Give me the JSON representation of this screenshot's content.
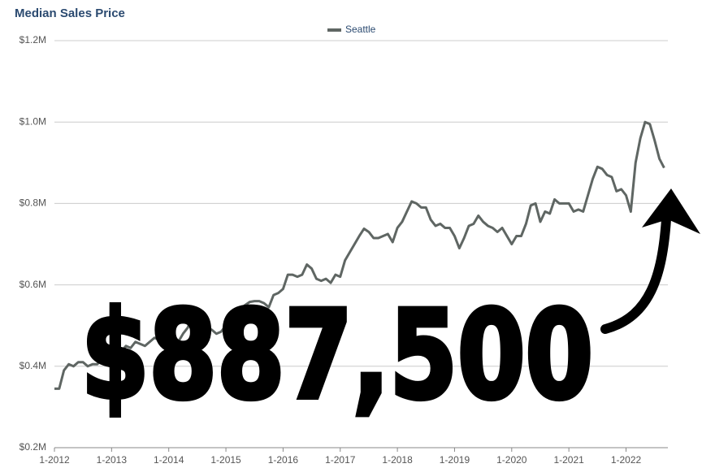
{
  "chart_data": {
    "type": "line",
    "title": "Median Sales Price",
    "annotation": "$887,500",
    "categories": [
      "1-2012",
      null,
      null,
      null,
      null,
      null,
      null,
      null,
      null,
      null,
      null,
      null,
      "1-2013",
      null,
      null,
      null,
      null,
      null,
      null,
      null,
      null,
      null,
      null,
      null,
      "1-2014",
      null,
      null,
      null,
      null,
      null,
      null,
      null,
      null,
      null,
      null,
      null,
      "1-2015",
      null,
      null,
      null,
      null,
      null,
      null,
      null,
      null,
      null,
      null,
      null,
      "1-2016",
      null,
      null,
      null,
      null,
      null,
      null,
      null,
      null,
      null,
      null,
      null,
      "1-2017",
      null,
      null,
      null,
      null,
      null,
      null,
      null,
      null,
      null,
      null,
      null,
      "1-2018",
      null,
      null,
      null,
      null,
      null,
      null,
      null,
      null,
      null,
      null,
      null,
      "1-2019",
      null,
      null,
      null,
      null,
      null,
      null,
      null,
      null,
      null,
      null,
      null,
      "1-2020",
      null,
      null,
      null,
      null,
      null,
      null,
      null,
      null,
      null,
      null,
      null,
      "1-2021",
      null,
      null,
      null,
      null,
      null,
      null,
      null,
      null,
      null,
      null,
      null,
      "1-2022",
      null,
      null,
      null,
      null,
      null,
      null,
      null,
      null
    ],
    "series": [
      {
        "name": "Seattle",
        "color": "#5f6663",
        "values": [
          345000,
          345000,
          390000,
          405000,
          400000,
          410000,
          410000,
          400000,
          405000,
          405000,
          420000,
          425000,
          415000,
          440000,
          435000,
          450000,
          445000,
          460000,
          455000,
          450000,
          460000,
          470000,
          465000,
          460000,
          450000,
          440000,
          460000,
          480000,
          495000,
          525000,
          490000,
          480000,
          495000,
          490000,
          480000,
          485000,
          500000,
          505000,
          520000,
          540000,
          550000,
          558000,
          560000,
          560000,
          555000,
          545000,
          575000,
          580000,
          590000,
          625000,
          625000,
          620000,
          625000,
          650000,
          640000,
          615000,
          610000,
          615000,
          605000,
          625000,
          620000,
          660000,
          680000,
          700000,
          720000,
          738000,
          730000,
          715000,
          715000,
          720000,
          725000,
          705000,
          740000,
          755000,
          780000,
          805000,
          800000,
          790000,
          790000,
          760000,
          745000,
          750000,
          740000,
          740000,
          720000,
          690000,
          715000,
          745000,
          750000,
          770000,
          755000,
          745000,
          740000,
          730000,
          740000,
          720000,
          700000,
          720000,
          720000,
          750000,
          795000,
          800000,
          755000,
          780000,
          775000,
          810000,
          800000,
          800000,
          800000,
          780000,
          785000,
          780000,
          820000,
          860000,
          890000,
          885000,
          870000,
          865000,
          830000,
          835000,
          820000,
          780000,
          900000,
          960000,
          1000000,
          995000,
          955000,
          910000,
          887500
        ]
      }
    ],
    "ylim": [
      200000,
      1200000
    ],
    "yticks": [
      {
        "value": 200000,
        "label": "$0.2M"
      },
      {
        "value": 400000,
        "label": "$0.4M"
      },
      {
        "value": 600000,
        "label": "$0.6M"
      },
      {
        "value": 800000,
        "label": "$0.8M"
      },
      {
        "value": 1000000,
        "label": "$1.0M"
      },
      {
        "value": 1200000,
        "label": "$1.2M"
      }
    ],
    "grid": true
  }
}
